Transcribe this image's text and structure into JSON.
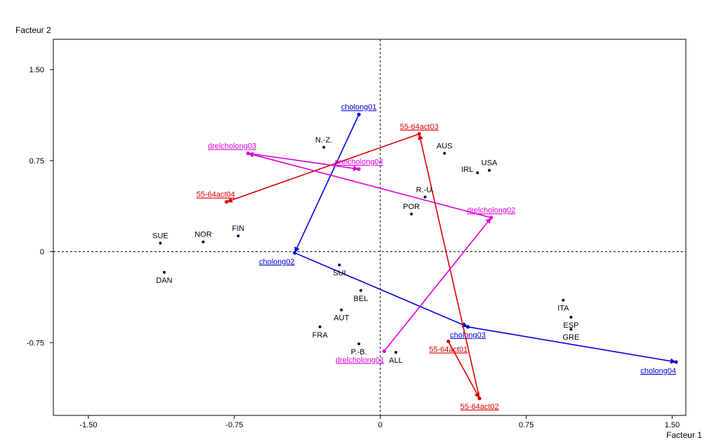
{
  "chart_data": {
    "type": "scatter",
    "xlabel": "Facteur 1",
    "ylabel": "Facteur 2",
    "xlim": [
      -1.68,
      1.57
    ],
    "ylim": [
      -1.35,
      1.75
    ],
    "xticks": [
      {
        "value": -1.5,
        "label": "-1.50"
      },
      {
        "value": -0.75,
        "label": "-0.75"
      },
      {
        "value": 0,
        "label": "0"
      },
      {
        "value": 0.75,
        "label": "0.75"
      },
      {
        "value": 1.5,
        "label": "1.50"
      }
    ],
    "yticks": [
      {
        "value": 1.5,
        "label": "1.50"
      },
      {
        "value": 0.75,
        "label": "0.75"
      },
      {
        "value": 0,
        "label": "0"
      },
      {
        "value": -0.75,
        "label": "-0.75"
      }
    ],
    "grid": false,
    "reference_lines": {
      "x": 0,
      "y": 0,
      "style": "dashed"
    },
    "countries": [
      {
        "label": "SUE",
        "x": -1.13,
        "y": 0.07,
        "label_pos": "above"
      },
      {
        "label": "DAN",
        "x": -1.11,
        "y": -0.17,
        "label_pos": "below"
      },
      {
        "label": "NOR",
        "x": -0.91,
        "y": 0.08,
        "label_pos": "above"
      },
      {
        "label": "FIN",
        "x": -0.73,
        "y": 0.13,
        "label_pos": "above"
      },
      {
        "label": "N.-Z.",
        "x": -0.29,
        "y": 0.86,
        "label_pos": "above"
      },
      {
        "label": "SUI",
        "x": -0.21,
        "y": -0.11,
        "label_pos": "below"
      },
      {
        "label": "BEL",
        "x": -0.1,
        "y": -0.32,
        "label_pos": "below"
      },
      {
        "label": "AUT",
        "x": -0.2,
        "y": -0.48,
        "label_pos": "below"
      },
      {
        "label": "FRA",
        "x": -0.31,
        "y": -0.62,
        "label_pos": "below"
      },
      {
        "label": "P.-B.",
        "x": -0.11,
        "y": -0.76,
        "label_pos": "below"
      },
      {
        "label": "ALL",
        "x": 0.08,
        "y": -0.83,
        "label_pos": "below"
      },
      {
        "label": "POR",
        "x": 0.16,
        "y": 0.31,
        "label_pos": "above"
      },
      {
        "label": "R.-U.",
        "x": 0.23,
        "y": 0.45,
        "label_pos": "above"
      },
      {
        "label": "AUS",
        "x": 0.33,
        "y": 0.81,
        "label_pos": "above"
      },
      {
        "label": "IRL",
        "x": 0.5,
        "y": 0.65,
        "label_pos": "left"
      },
      {
        "label": "USA",
        "x": 0.56,
        "y": 0.67,
        "label_pos": "above"
      },
      {
        "label": "ITA",
        "x": 0.94,
        "y": -0.4,
        "label_pos": "below"
      },
      {
        "label": "ESP",
        "x": 0.98,
        "y": -0.54,
        "label_pos": "below"
      },
      {
        "label": "GRE",
        "x": 0.98,
        "y": -0.64,
        "label_pos": "below"
      }
    ],
    "trajectories": [
      {
        "color": "#0000dd",
        "points": [
          {
            "label": "cholong01",
            "x": -0.11,
            "y": 1.13,
            "label_pos": "above"
          },
          {
            "label": "cholong02",
            "x": -0.44,
            "y": -0.01,
            "label_pos": "below-left"
          },
          {
            "label": "cholong03",
            "x": 0.45,
            "y": -0.62,
            "label_pos": "below"
          },
          {
            "label": "cholong04",
            "x": 1.52,
            "y": -0.91,
            "label_pos": "below-left"
          }
        ]
      },
      {
        "color": "#dd0000",
        "points": [
          {
            "label": "55-64act01",
            "x": 0.35,
            "y": -0.74,
            "label_pos": "below"
          },
          {
            "label": "55-64act02",
            "x": 0.51,
            "y": -1.21,
            "label_pos": "below"
          },
          {
            "label": "55-64act03",
            "x": 0.2,
            "y": 0.97,
            "label_pos": "above"
          },
          {
            "label": "55-64act04",
            "x": -0.79,
            "y": 0.41,
            "label_pos": "above-left"
          }
        ]
      },
      {
        "color": "#dd00dd",
        "points": [
          {
            "label": "drelcholong01",
            "x": 0.02,
            "y": -0.82,
            "label_pos": "below-left"
          },
          {
            "label": "drelcholong02",
            "x": 0.57,
            "y": 0.28,
            "label_pos": "above"
          },
          {
            "label": "drelcholong03",
            "x": -0.68,
            "y": 0.81,
            "label_pos": "above-left"
          },
          {
            "label": "drelcholong04",
            "x": -0.11,
            "y": 0.68,
            "label_pos": "above"
          }
        ]
      }
    ]
  }
}
